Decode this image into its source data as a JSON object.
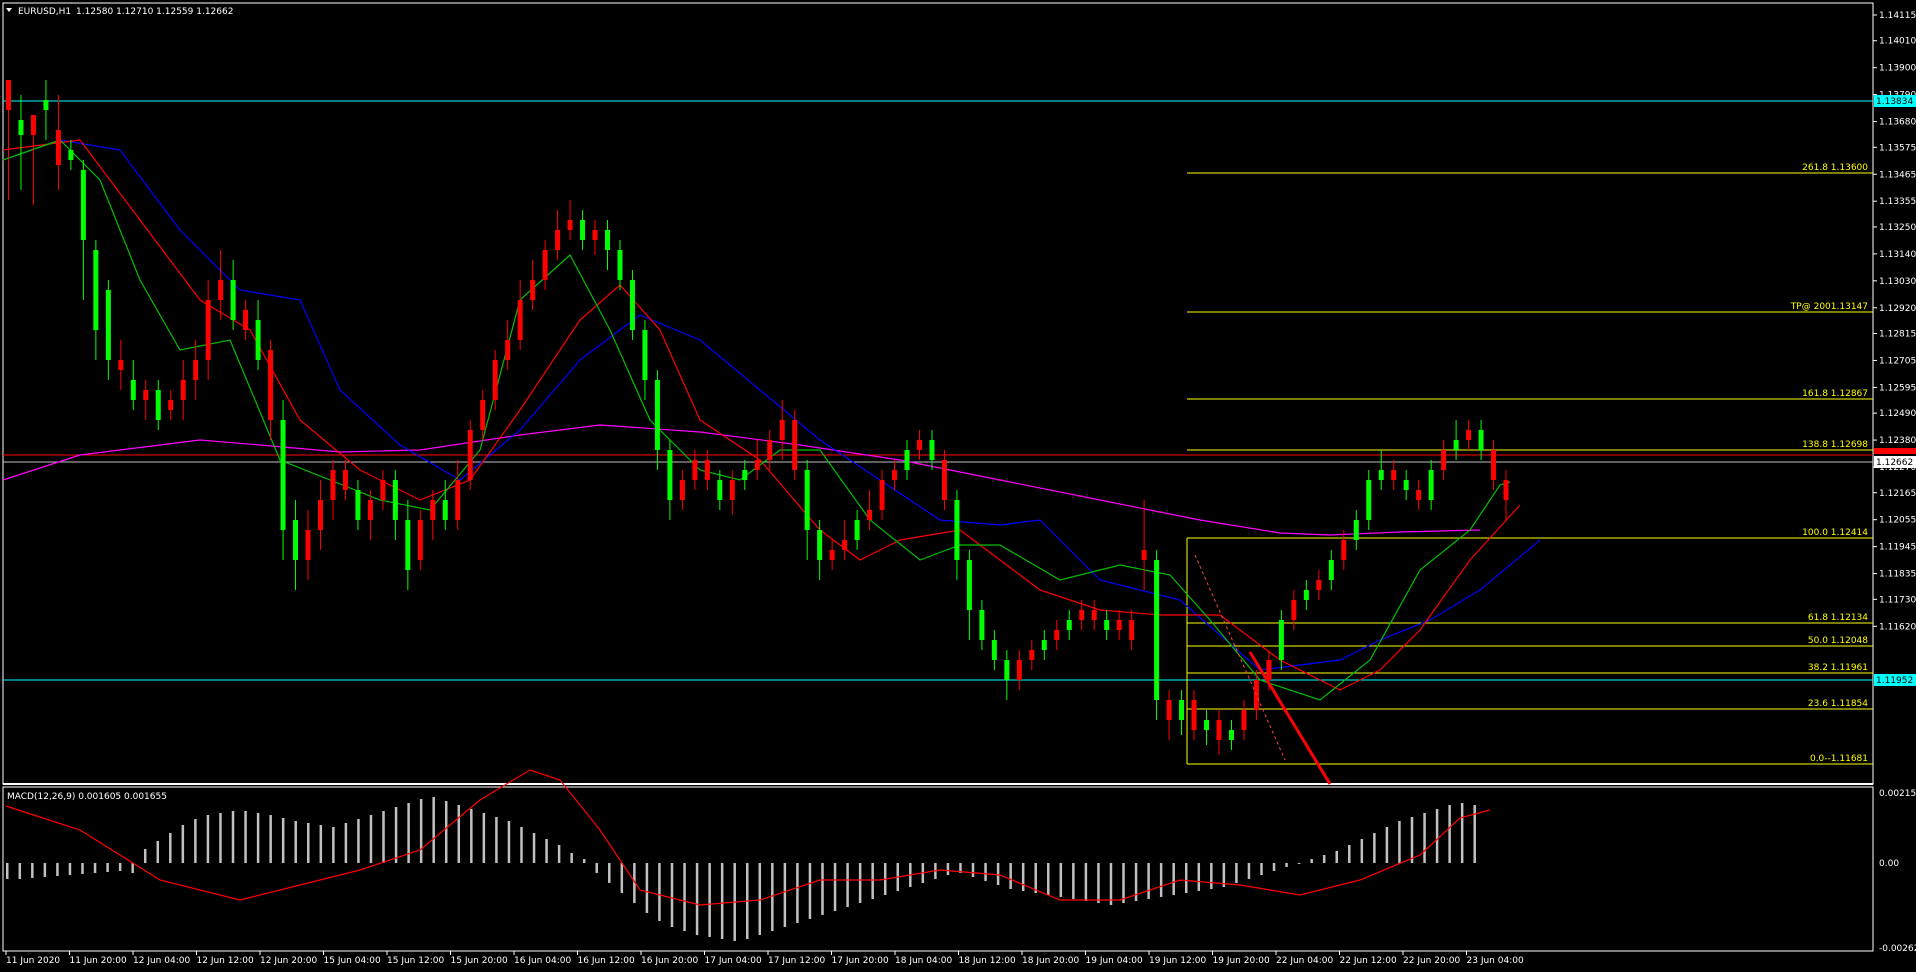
{
  "header": {
    "symbol_timeframe": "EURUSD,H1",
    "ohlc": "1.12580 1.12710 1.12559 1.12662"
  },
  "macd": {
    "label": "MACD(12,26,9) 0.001605 0.001655",
    "scale": [
      "0.002152",
      "0.00",
      "-0.002623"
    ],
    "histogram_color": "#c0c0c0",
    "signal_color": "#ff0000"
  },
  "price_axis": {
    "labels": [
      "1.14115",
      "1.14010",
      "1.13900",
      "1.13790",
      "1.13680",
      "1.13575",
      "1.13465",
      "1.13355",
      "1.13250",
      "1.13140",
      "1.13030",
      "1.12920",
      "1.12815",
      "1.12705",
      "1.12595",
      "1.12490",
      "1.12380",
      "1.12270",
      "1.12165",
      "1.12055",
      "1.11945",
      "1.11835",
      "1.11730",
      "1.11620"
    ],
    "current_price_tag": "1.12662",
    "resistance_tag": "1.13834",
    "support_tag": "1.11952"
  },
  "time_axis": {
    "labels": [
      "11 Jun 2020",
      "11 Jun 20:00",
      "12 Jun 04:00",
      "12 Jun 12:00",
      "12 Jun 20:00",
      "15 Jun 04:00",
      "15 Jun 12:00",
      "15 Jun 20:00",
      "16 Jun 04:00",
      "16 Jun 12:00",
      "16 Jun 20:00",
      "17 Jun 04:00",
      "17 Jun 12:00",
      "17 Jun 20:00",
      "18 Jun 04:00",
      "18 Jun 12:00",
      "18 Jun 20:00",
      "19 Jun 04:00",
      "19 Jun 12:00",
      "19 Jun 20:00",
      "22 Jun 04:00",
      "22 Jun 12:00",
      "22 Jun 20:00",
      "23 Jun 04:00"
    ]
  },
  "fibonacci": [
    {
      "label": "261.8   1.13600",
      "price": 1.136
    },
    {
      "label": "TP@ 2001.13147",
      "price": 1.13147
    },
    {
      "label": "161.8   1.12867",
      "price": 1.12867
    },
    {
      "label": "138.8  1.12698",
      "price": 1.12698
    },
    {
      "label": "100.0   1.12414",
      "price": 1.12414
    },
    {
      "label": "61.8   1.12134",
      "price": 1.12134
    },
    {
      "label": "50.0   1.12048",
      "price": 1.12048
    },
    {
      "label": "38.2   1.11961",
      "price": 1.11961
    },
    {
      "label": "23.6   1.11854",
      "price": 1.11854
    },
    {
      "label": "0.0--1.11681",
      "price": 1.11681
    }
  ],
  "colors": {
    "background": "#000000",
    "bull": "#00ff00",
    "bear": "#ff0000",
    "fib": "#ffff00",
    "hline": "#00ffff",
    "ma_fast": "#00c000",
    "ma_mid": "#ff0000",
    "ma_slow": "#0000ff",
    "ma_long": "#ff00ff",
    "axis_text": "#ffffff"
  },
  "icons": {
    "menu": "triangle-down-icon"
  }
}
